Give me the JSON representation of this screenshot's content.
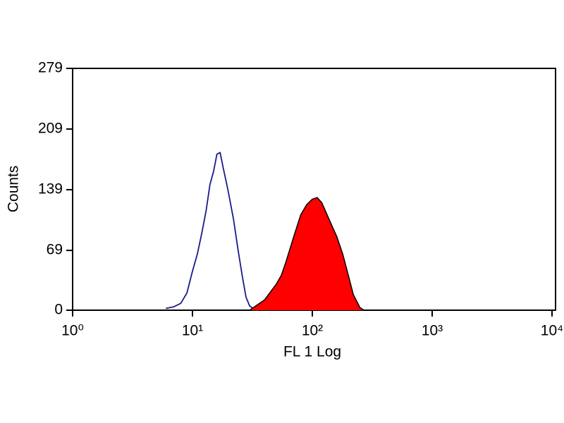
{
  "chart_data": {
    "type": "line",
    "xlabel": "FL 1 Log",
    "ylabel": "Counts",
    "xscale": "log",
    "xlim": [
      1,
      10000
    ],
    "xticks": [
      {
        "value": 1,
        "label": "10⁰"
      },
      {
        "value": 10,
        "label": "10¹"
      },
      {
        "value": 100,
        "label": "10²"
      },
      {
        "value": 1000,
        "label": "10³"
      },
      {
        "value": 10000,
        "label": "10⁴"
      }
    ],
    "ylim": [
      0,
      279
    ],
    "yticks": [
      0,
      69,
      139,
      209,
      279
    ],
    "series": [
      {
        "color": "#1a1a8c",
        "filled": false,
        "x": [
          6,
          7,
          8,
          9,
          10,
          11,
          12,
          13,
          14,
          15,
          16,
          17,
          18,
          19,
          20,
          22,
          24,
          26,
          28,
          30,
          32,
          35
        ],
        "values": [
          2,
          4,
          8,
          20,
          45,
          65,
          90,
          115,
          145,
          160,
          180,
          182,
          165,
          150,
          135,
          105,
          70,
          40,
          15,
          5,
          2,
          0
        ]
      },
      {
        "color": "#ff0000",
        "filled": true,
        "x": [
          30,
          33,
          40,
          50,
          55,
          60,
          70,
          80,
          90,
          100,
          110,
          120,
          140,
          160,
          180,
          200,
          220,
          250,
          270
        ],
        "values": [
          0,
          4,
          12,
          30,
          40,
          55,
          85,
          110,
          122,
          128,
          130,
          124,
          103,
          85,
          64,
          40,
          18,
          3,
          0
        ]
      }
    ]
  }
}
